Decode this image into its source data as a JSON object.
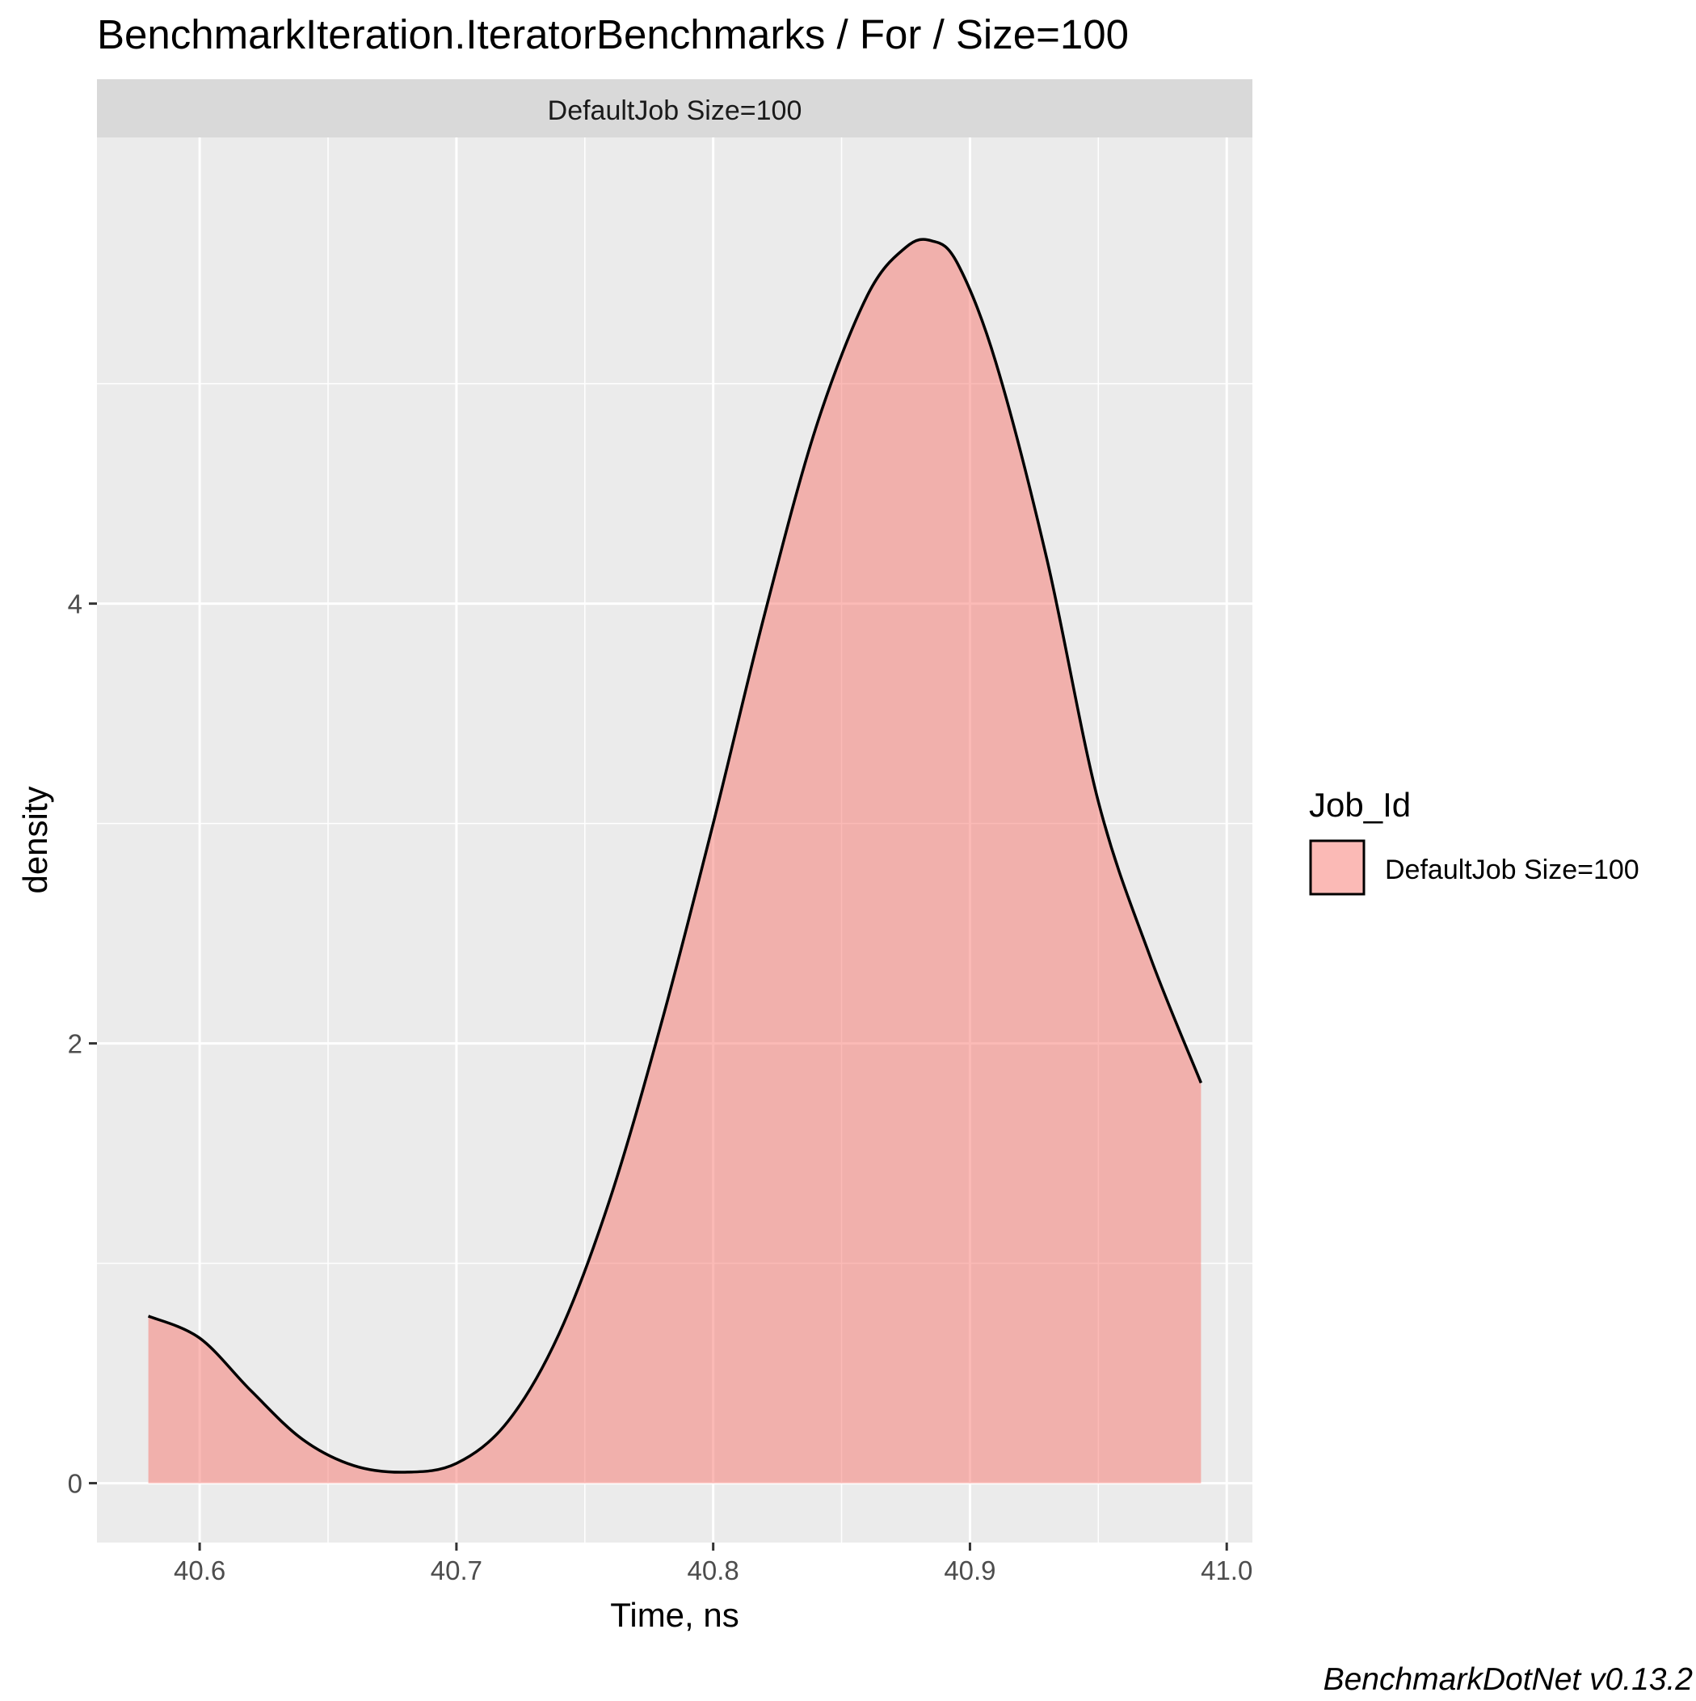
{
  "chart_data": {
    "type": "area",
    "title": "BenchmarkIteration.IteratorBenchmarks / For / Size=100",
    "facet_label": "DefaultJob Size=100",
    "xlabel": "Time, ns",
    "ylabel": "density",
    "xlim": [
      40.56,
      41.01
    ],
    "ylim": [
      -0.27,
      6.12
    ],
    "x_ticks": [
      40.6,
      40.7,
      40.8,
      40.9,
      41.0
    ],
    "x_tick_labels": [
      "40.6",
      "40.7",
      "40.8",
      "40.9",
      "41.0"
    ],
    "y_ticks": [
      0,
      2,
      4
    ],
    "y_tick_labels": [
      "0",
      "2",
      "4"
    ],
    "grid": true,
    "legend": {
      "title": "Job_Id",
      "position": "right",
      "entries": [
        "DefaultJob Size=100"
      ]
    },
    "series": [
      {
        "name": "DefaultJob Size=100",
        "color": "#F8766D",
        "x": [
          40.58,
          40.6,
          40.62,
          40.64,
          40.66,
          40.68,
          40.7,
          40.72,
          40.74,
          40.76,
          40.78,
          40.8,
          40.82,
          40.84,
          40.86,
          40.875,
          40.885,
          40.895,
          40.91,
          40.93,
          40.95,
          40.97,
          40.99
        ],
        "y": [
          0.76,
          0.66,
          0.42,
          0.2,
          0.08,
          0.05,
          0.09,
          0.28,
          0.68,
          1.3,
          2.1,
          3.0,
          3.95,
          4.8,
          5.4,
          5.62,
          5.65,
          5.55,
          5.1,
          4.2,
          3.1,
          2.4,
          1.82
        ]
      }
    ]
  },
  "caption": "BenchmarkDotNet v0.13.2"
}
